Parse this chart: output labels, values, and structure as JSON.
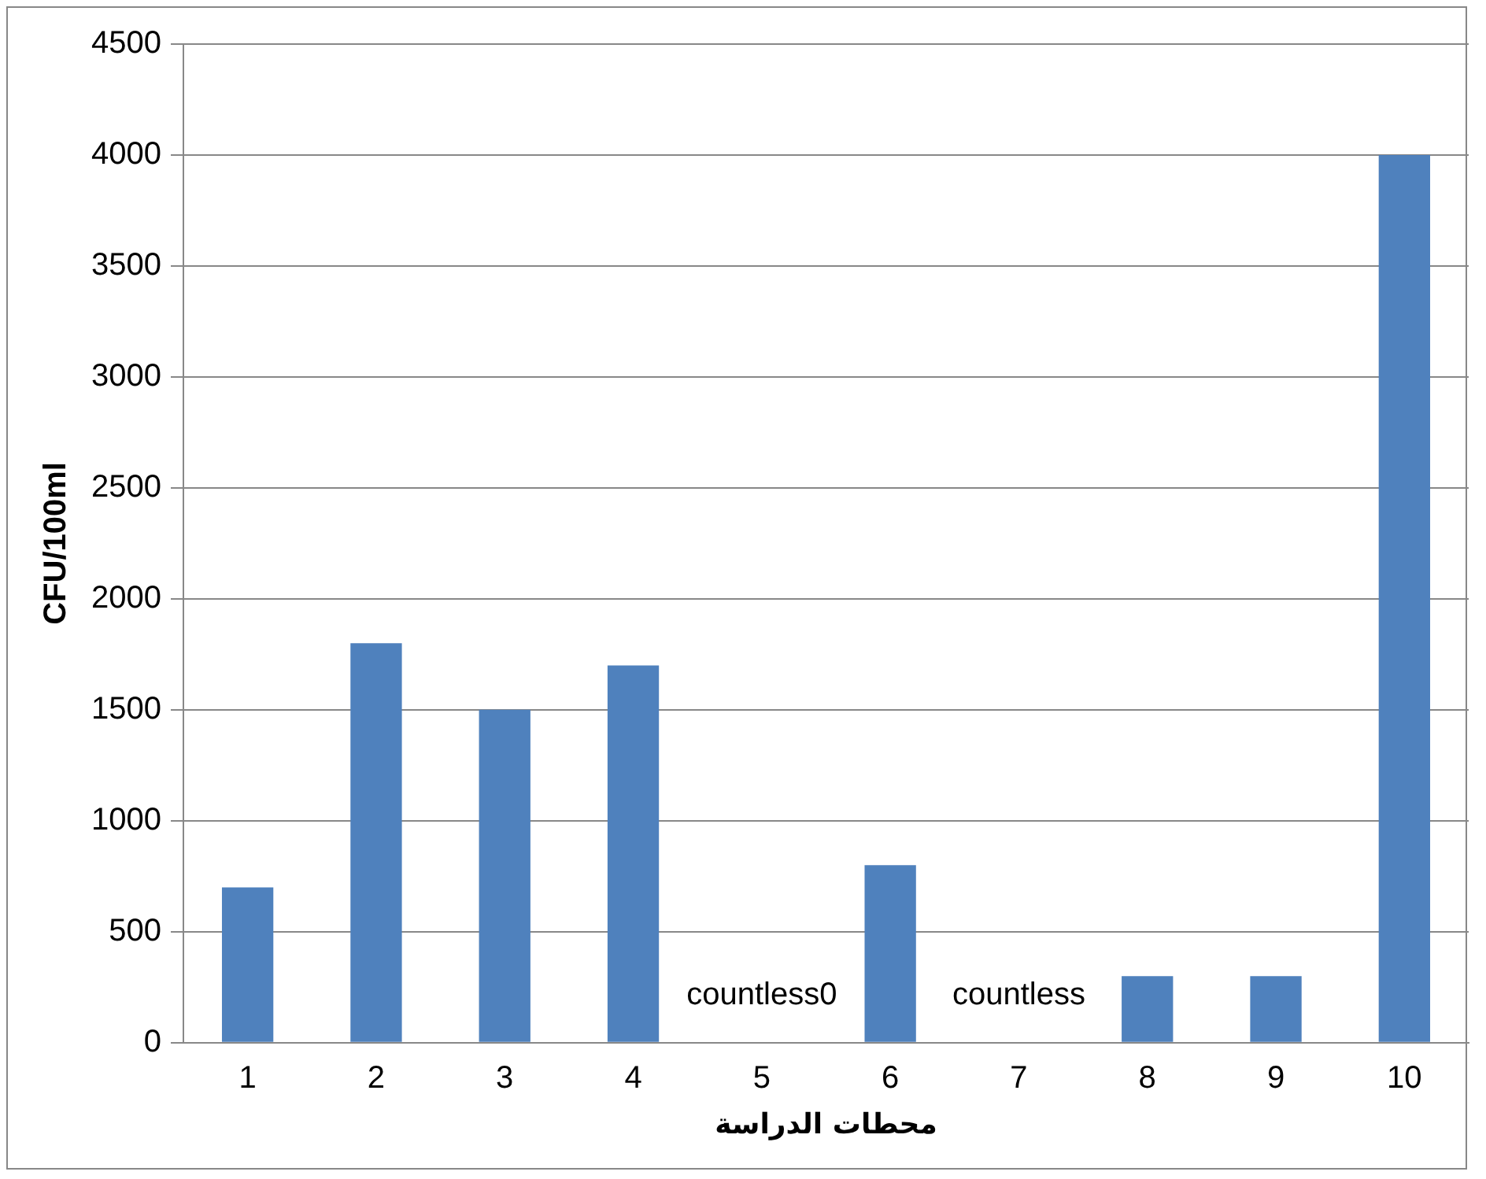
{
  "chart_data": {
    "type": "bar",
    "xlabel": "محطات الدراسة",
    "ylabel": "CFU/100ml",
    "categories": [
      "1",
      "2",
      "3",
      "4",
      "5",
      "6",
      "7",
      "8",
      "9",
      "10"
    ],
    "values": [
      700,
      1800,
      1500,
      1700,
      null,
      800,
      null,
      300,
      300,
      4000
    ],
    "color": "#4f81bd",
    "ylim": [
      0,
      4500
    ],
    "yticks": [
      0,
      500,
      1000,
      1500,
      2000,
      2500,
      3000,
      3500,
      4000,
      4500
    ],
    "grid": "y",
    "legend": false,
    "annotations": [
      "countless0",
      "countless"
    ]
  }
}
